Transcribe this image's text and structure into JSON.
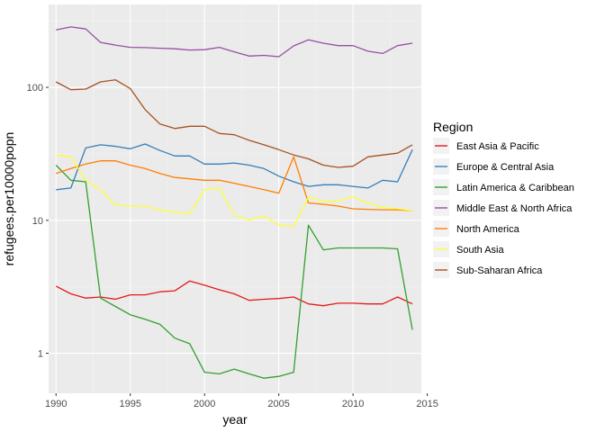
{
  "chart_data": {
    "type": "line",
    "xlabel": "year",
    "ylabel": "refugees.per10000popn",
    "x_scale": "linear",
    "y_scale": "log10",
    "xlim": [
      1989.5,
      2014.6
    ],
    "ylim": [
      0.5,
      420
    ],
    "x_ticks": [
      1990,
      1995,
      2000,
      2005,
      2010,
      2015
    ],
    "x_tick_labels": [
      "1990",
      "1995",
      "2000",
      "2005",
      "2010",
      "2015"
    ],
    "y_ticks": [
      1,
      10,
      100
    ],
    "y_tick_labels": [
      "1",
      "10",
      "100"
    ],
    "grid": true,
    "legend": {
      "title": "Region",
      "position": "right"
    },
    "x": [
      1990,
      1991,
      1992,
      1993,
      1994,
      1995,
      1996,
      1997,
      1998,
      1999,
      2000,
      2001,
      2002,
      2003,
      2004,
      2005,
      2006,
      2007,
      2008,
      2009,
      2010,
      2011,
      2012,
      2013,
      2014
    ],
    "series": [
      {
        "name": "East Asia & Pacific",
        "color": "#e41a1c",
        "values": [
          3.2,
          2.8,
          2.6,
          2.65,
          2.55,
          2.75,
          2.75,
          2.9,
          2.95,
          3.5,
          3.25,
          3.0,
          2.8,
          2.5,
          2.55,
          2.58,
          2.65,
          2.35,
          2.28,
          2.38,
          2.38,
          2.35,
          2.35,
          2.65,
          2.35
        ]
      },
      {
        "name": "Europe & Central Asia",
        "color": "#377eb8",
        "values": [
          17,
          17.5,
          35,
          37,
          36,
          34.5,
          37.5,
          33.5,
          30.5,
          30.5,
          26.5,
          26.5,
          27,
          26,
          24.5,
          21.5,
          19.5,
          18,
          18.5,
          18.5,
          18,
          17.5,
          20,
          19.5,
          34
        ]
      },
      {
        "name": "Latin America & Caribbean",
        "color": "#33a02c",
        "values": [
          26,
          20,
          19.5,
          2.6,
          2.25,
          1.95,
          1.8,
          1.65,
          1.3,
          1.18,
          0.72,
          0.7,
          0.76,
          0.7,
          0.65,
          0.67,
          0.72,
          9.2,
          6.0,
          6.2,
          6.2,
          6.2,
          6.2,
          6.1,
          1.5
        ]
      },
      {
        "name": "Middle East & North Africa",
        "color": "#984ea3",
        "values": [
          270,
          285,
          275,
          218,
          208,
          200,
          199,
          197,
          195,
          191,
          192,
          200,
          185,
          172,
          174,
          170,
          205,
          228,
          215,
          206,
          206,
          187,
          180,
          206,
          215
        ]
      },
      {
        "name": "North America",
        "color": "#ff7f00",
        "values": [
          22.5,
          24.5,
          26.5,
          28,
          28,
          26,
          24.5,
          22.5,
          21,
          20.5,
          20,
          20,
          19,
          18,
          17,
          16,
          30,
          13.5,
          13.2,
          12.8,
          12.2,
          12.1,
          12,
          12,
          11.8
        ]
      },
      {
        "name": "South Asia",
        "color": "#ffff33",
        "values": [
          31,
          30,
          20,
          17,
          13,
          12.8,
          12.8,
          12,
          11.5,
          11.2,
          17,
          17.5,
          11,
          10,
          10.8,
          9.2,
          9,
          15,
          13.8,
          14,
          15,
          13.5,
          12.5,
          12.2,
          11.8
        ]
      },
      {
        "name": "Sub-Saharan Africa",
        "color": "#a6521f",
        "values": [
          110,
          96,
          97,
          110,
          114,
          98,
          68,
          53,
          49,
          51,
          51,
          45,
          44,
          40,
          37,
          34,
          31,
          29,
          26,
          25,
          25.5,
          30,
          31,
          32,
          37
        ]
      }
    ]
  }
}
